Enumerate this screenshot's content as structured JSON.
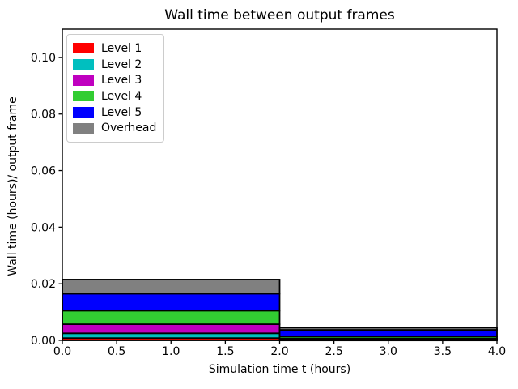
{
  "figure": {
    "title": "Wall time between output frames",
    "xlabel": "Simulation time t (hours)",
    "ylabel": "Wall time (hours)/ output frame"
  },
  "chart_data": {
    "type": "bar",
    "stacked": true,
    "orientation": "vertical",
    "title": "Wall time between output frames",
    "xlabel": "Simulation time t (hours)",
    "ylabel": "Wall time (hours)/ output frame",
    "xlim": [
      0.0,
      4.0
    ],
    "ylim": [
      0.0,
      0.11
    ],
    "grid": false,
    "legend_position": "upper left",
    "bar_edge_color": "#000000",
    "x_ticks": [
      {
        "value": 0.0,
        "label": "0.0"
      },
      {
        "value": 0.5,
        "label": "0.5"
      },
      {
        "value": 1.0,
        "label": "1.0"
      },
      {
        "value": 1.5,
        "label": "1.5"
      },
      {
        "value": 2.0,
        "label": "2.0"
      },
      {
        "value": 2.5,
        "label": "2.5"
      },
      {
        "value": 3.0,
        "label": "3.0"
      },
      {
        "value": 3.5,
        "label": "3.5"
      },
      {
        "value": 4.0,
        "label": "4.0"
      }
    ],
    "y_ticks": [
      {
        "value": 0.0,
        "label": "0.00"
      },
      {
        "value": 0.02,
        "label": "0.02"
      },
      {
        "value": 0.04,
        "label": "0.04"
      },
      {
        "value": 0.06,
        "label": "0.06"
      },
      {
        "value": 0.08,
        "label": "0.08"
      },
      {
        "value": 0.1,
        "label": "0.10"
      }
    ],
    "bars": [
      {
        "x_start": 0.0,
        "x_end": 2.0
      },
      {
        "x_start": 2.0,
        "x_end": 4.0
      }
    ],
    "series": [
      {
        "name": "Level 1",
        "color": "#ff0000",
        "values": [
          0.0008,
          0.0001
        ]
      },
      {
        "name": "Level 2",
        "color": "#00bfbf",
        "values": [
          0.0017,
          0.0002
        ]
      },
      {
        "name": "Level 3",
        "color": "#bf00bf",
        "values": [
          0.0032,
          0.0004
        ]
      },
      {
        "name": "Level 4",
        "color": "#32cd32",
        "values": [
          0.0048,
          0.0007
        ]
      },
      {
        "name": "Level 5",
        "color": "#0000ff",
        "values": [
          0.006,
          0.0023
        ]
      },
      {
        "name": "Overhead",
        "color": "#808080",
        "values": [
          0.005,
          0.0008
        ]
      }
    ]
  }
}
